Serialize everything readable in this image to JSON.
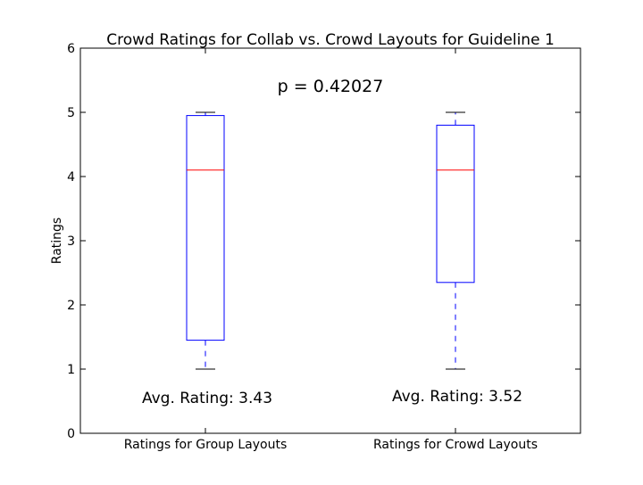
{
  "chart_data": {
    "type": "box",
    "title": "Crowd Ratings for Collab vs. Crowd Layouts for Guideline 1",
    "xlabel": "",
    "ylabel": "Ratings",
    "ylim": [
      0,
      6
    ],
    "yticks": [
      "0",
      "1",
      "2",
      "3",
      "4",
      "5",
      "6"
    ],
    "grid": false,
    "annotation": "p = 0.42027",
    "colors": {
      "box": "#0000ff",
      "median": "#ff0000",
      "cap": "#000000"
    },
    "categories": [
      "Ratings for Group Layouts",
      "Ratings for Crowd Layouts"
    ],
    "boxes": [
      {
        "name": "Ratings for Group Layouts",
        "whisker_low": 1.0,
        "q1": 1.45,
        "median": 4.1,
        "q3": 4.95,
        "whisker_high": 5.0,
        "avg_label": "Avg. Rating: 3.43"
      },
      {
        "name": "Ratings for Crowd Layouts",
        "whisker_low": 1.0,
        "q1": 2.35,
        "median": 4.1,
        "q3": 4.8,
        "whisker_high": 5.0,
        "avg_label": "Avg. Rating: 3.52"
      }
    ]
  }
}
